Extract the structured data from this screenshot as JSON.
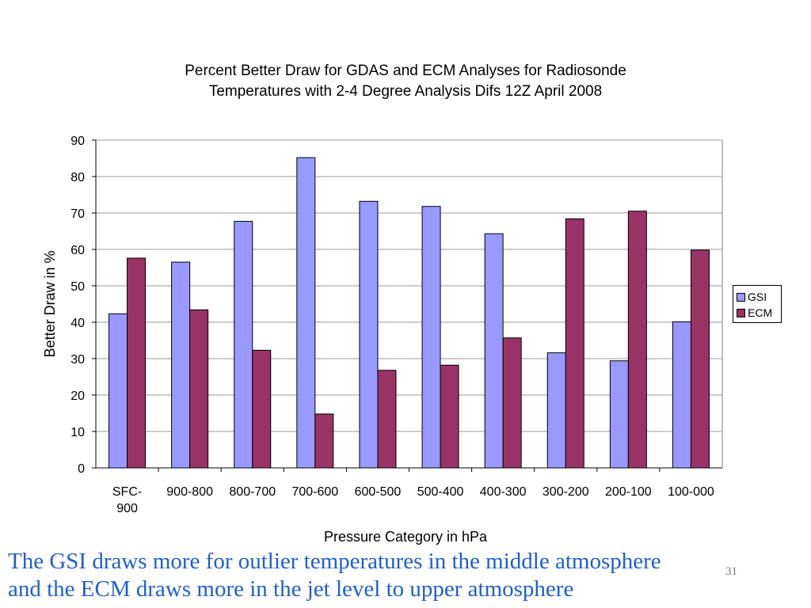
{
  "chart_data": {
    "type": "bar",
    "title_lines": [
      "Percent Better Draw for GDAS and ECM Analyses for Radiosonde",
      "Temperatures with 2-4 Degree Analysis Difs 12Z April 2008"
    ],
    "xlabel": "Pressure Category in hPa",
    "ylabel": "Better Draw in %",
    "ylim": [
      0,
      90
    ],
    "y_ticks": [
      "0",
      "10",
      "20",
      "30",
      "40",
      "50",
      "60",
      "70",
      "80",
      "90"
    ],
    "categories": [
      [
        "SFC-",
        "900"
      ],
      [
        "900-800"
      ],
      [
        "800-700"
      ],
      [
        "700-600"
      ],
      [
        "600-500"
      ],
      [
        "500-400"
      ],
      [
        "400-300"
      ],
      [
        "300-200"
      ],
      [
        "200-100"
      ],
      [
        "100-000"
      ]
    ],
    "series": [
      {
        "name": "GSI",
        "color": "#9999ff",
        "values": [
          42.3,
          56.5,
          67.7,
          85.2,
          73.2,
          71.8,
          64.3,
          31.6,
          29.4,
          40.1
        ]
      },
      {
        "name": "ECM",
        "color": "#993366",
        "values": [
          57.6,
          43.4,
          32.3,
          14.8,
          26.8,
          28.2,
          35.7,
          68.4,
          70.5,
          59.8
        ]
      }
    ],
    "grid": true,
    "legend_position": "right"
  },
  "caption": {
    "line1": "The GSI draws more for outlier temperatures in the middle atmosphere",
    "line2": "and the ECM draws more in the jet level  to upper atmosphere"
  },
  "slide_number": "31"
}
